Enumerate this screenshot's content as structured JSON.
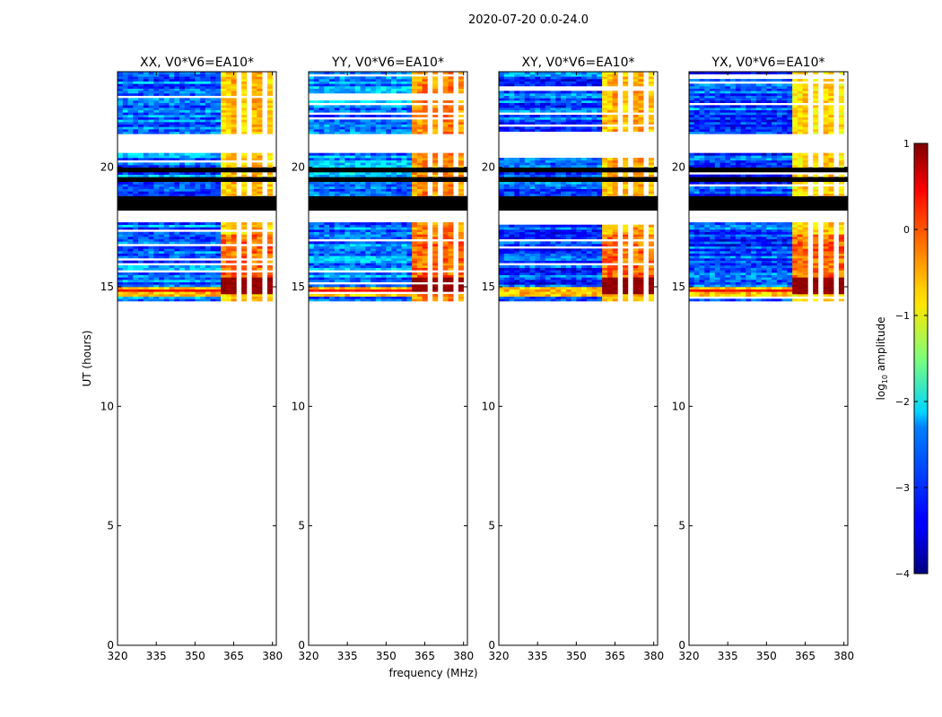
{
  "figure": {
    "suptitle": "2020-07-20 0.0-24.0",
    "xlabel": "frequency (MHz)",
    "ylabel": "UT (hours)"
  },
  "colorbar": {
    "label_main": "log",
    "label_sub": "10",
    "label_rest": " amplitude",
    "colormap": "jet",
    "min": -4,
    "max": 1,
    "ticks": [
      -4,
      -3,
      -2,
      -1,
      0,
      1
    ],
    "tick_labels": [
      "−4",
      "−3",
      "−2",
      "−1",
      "0",
      "1"
    ]
  },
  "chart_data": [
    {
      "type": "heatmap",
      "title": "XX, V0*V6=EA10*",
      "xlabel": "",
      "ylabel": "UT (hours)",
      "xlim": [
        320,
        381.5
      ],
      "ylim": [
        0,
        24
      ],
      "xticks": [
        320,
        335,
        350,
        365,
        380
      ],
      "yticks": [
        0,
        5,
        10,
        15,
        20
      ],
      "data_coverage_hours": [
        14.4,
        24
      ],
      "flagged_bands_hours": [
        [
          18.2,
          18.8
        ],
        [
          19.4,
          19.6
        ],
        [
          19.8,
          20.0
        ]
      ],
      "base_log_amplitude": -2.8,
      "bright_band_mhz": [
        360,
        380
      ],
      "bright_band_log_amplitude": -0.8,
      "strong_burst_hours": [
        14.7,
        15.4
      ],
      "strong_burst_log_amplitude": 0.8
    },
    {
      "type": "heatmap",
      "title": "YY, V0*V6=EA10*",
      "xlabel": "frequency (MHz)",
      "ylabel": "",
      "xlim": [
        320,
        381.5
      ],
      "ylim": [
        0,
        24
      ],
      "xticks": [
        320,
        335,
        350,
        365,
        380
      ],
      "yticks": [
        0,
        5,
        10,
        15,
        20
      ],
      "data_coverage_hours": [
        14.4,
        24
      ],
      "flagged_bands_hours": [
        [
          18.2,
          18.8
        ],
        [
          19.4,
          19.6
        ],
        [
          19.8,
          20.0
        ]
      ],
      "base_log_amplitude": -2.7,
      "bright_band_mhz": [
        360,
        380
      ],
      "bright_band_log_amplitude": -0.5,
      "strong_burst_hours": [
        14.7,
        15.4
      ],
      "strong_burst_log_amplitude": 0.8
    },
    {
      "type": "heatmap",
      "title": "XY, V0*V6=EA10*",
      "xlabel": "",
      "ylabel": "",
      "xlim": [
        320,
        381.5
      ],
      "ylim": [
        0,
        24
      ],
      "xticks": [
        320,
        335,
        350,
        365,
        380
      ],
      "yticks": [
        0,
        5,
        10,
        15,
        20
      ],
      "data_coverage_hours": [
        14.4,
        24
      ],
      "flagged_bands_hours": [
        [
          18.2,
          18.8
        ],
        [
          19.4,
          19.6
        ],
        [
          19.8,
          20.0
        ]
      ],
      "base_log_amplitude": -3.0,
      "bright_band_mhz": [
        360,
        380
      ],
      "bright_band_log_amplitude": -0.7,
      "strong_burst_hours": [
        14.7,
        15.4
      ],
      "strong_burst_log_amplitude": 0.8
    },
    {
      "type": "heatmap",
      "title": "YX, V0*V6=EA10*",
      "xlabel": "",
      "ylabel": "",
      "xlim": [
        320,
        381.5
      ],
      "ylim": [
        0,
        24
      ],
      "xticks": [
        320,
        335,
        350,
        365,
        380
      ],
      "yticks": [
        0,
        5,
        10,
        15,
        20
      ],
      "data_coverage_hours": [
        14.4,
        24
      ],
      "flagged_bands_hours": [
        [
          18.2,
          18.8
        ],
        [
          19.4,
          19.6
        ],
        [
          19.8,
          20.0
        ]
      ],
      "base_log_amplitude": -3.0,
      "bright_band_mhz": [
        360,
        380
      ],
      "bright_band_log_amplitude": -0.9,
      "strong_burst_hours": [
        14.7,
        15.4
      ],
      "strong_burst_log_amplitude": 0.8
    }
  ]
}
